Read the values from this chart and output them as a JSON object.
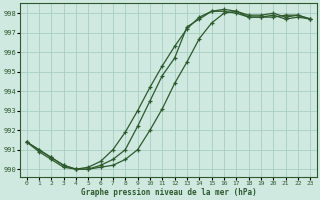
{
  "xlabel": "Graphe pression niveau de la mer (hPa)",
  "ylabel": "",
  "bg_color": "#cfe8e0",
  "grid_color": "#a8cfc0",
  "line_color": "#2d5a2d",
  "xlim": [
    0,
    23
  ],
  "ylim": [
    989.6,
    998.5
  ],
  "yticks": [
    990,
    991,
    992,
    993,
    994,
    995,
    996,
    997,
    998
  ],
  "xticks": [
    0,
    1,
    2,
    3,
    4,
    5,
    6,
    7,
    8,
    9,
    10,
    11,
    12,
    13,
    14,
    15,
    16,
    17,
    18,
    19,
    20,
    21,
    22,
    23
  ],
  "line1_x": [
    0,
    1,
    2,
    3,
    4,
    5,
    6,
    7,
    8,
    9,
    10,
    11,
    12,
    13,
    14,
    15,
    16,
    17,
    18,
    19,
    20,
    21,
    22,
    23
  ],
  "line1_y": [
    991.4,
    991.0,
    990.6,
    990.2,
    990.0,
    990.0,
    990.2,
    990.5,
    991.0,
    992.2,
    993.5,
    994.8,
    995.7,
    997.3,
    997.7,
    998.1,
    998.2,
    998.1,
    997.8,
    997.8,
    997.8,
    997.9,
    997.9,
    997.7
  ],
  "line2_x": [
    0,
    1,
    2,
    3,
    4,
    5,
    6,
    7,
    8,
    9,
    10,
    11,
    12,
    13,
    14,
    15,
    16,
    17,
    18,
    19,
    20,
    21,
    22,
    23
  ],
  "line2_y": [
    991.4,
    991.0,
    990.6,
    990.2,
    990.0,
    990.1,
    990.4,
    991.0,
    991.9,
    993.0,
    994.2,
    995.3,
    996.3,
    997.2,
    997.8,
    998.1,
    998.1,
    998.0,
    997.8,
    997.8,
    997.9,
    997.7,
    997.8,
    997.7
  ],
  "line3_x": [
    0,
    1,
    2,
    3,
    4,
    5,
    6,
    7,
    8,
    9,
    10,
    11,
    12,
    13,
    14,
    15,
    16,
    17,
    18,
    19,
    20,
    21,
    22,
    23
  ],
  "line3_y": [
    991.4,
    990.9,
    990.5,
    990.1,
    990.0,
    990.0,
    990.1,
    990.2,
    990.5,
    991.0,
    992.0,
    993.1,
    994.4,
    995.5,
    996.7,
    997.5,
    998.0,
    998.1,
    997.9,
    997.9,
    998.0,
    997.8,
    997.9,
    997.7
  ]
}
